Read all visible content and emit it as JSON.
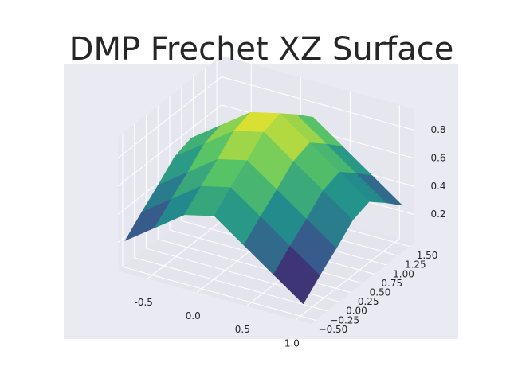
{
  "chart_data": {
    "type": "surface",
    "title": "DMP Frechet XZ Surface",
    "colormap": "viridis",
    "x": [
      -0.75,
      -0.45,
      -0.15,
      0.15,
      0.45,
      0.75,
      1.05
    ],
    "y": [
      -0.55,
      -0.2,
      0.15,
      0.5,
      0.85,
      1.2,
      1.55
    ],
    "z": [
      [
        0.21,
        0.36,
        0.51,
        0.56,
        0.41,
        0.26,
        0.11
      ],
      [
        0.32,
        0.47,
        0.62,
        0.67,
        0.52,
        0.37,
        0.22
      ],
      [
        0.42,
        0.57,
        0.72,
        0.77,
        0.62,
        0.47,
        0.32
      ],
      [
        0.53,
        0.68,
        0.83,
        0.88,
        0.73,
        0.58,
        0.43
      ],
      [
        0.57,
        0.72,
        0.87,
        0.92,
        0.77,
        0.62,
        0.47
      ],
      [
        0.47,
        0.62,
        0.77,
        0.82,
        0.67,
        0.52,
        0.37
      ],
      [
        0.36,
        0.51,
        0.66,
        0.71,
        0.56,
        0.41,
        0.26
      ]
    ],
    "xlim": [
      -0.8,
      1.15
    ],
    "ylim": [
      -0.6,
      1.6
    ],
    "zlim": [
      0,
      0.95
    ],
    "xticks": [
      -0.5,
      {
        "value": 0,
        "label": "0.0"
      },
      0.5,
      {
        "value": 1,
        "label": "1.0"
      }
    ],
    "yticks": [
      {
        "value": -0.5,
        "label": "−0.50"
      },
      {
        "value": -0.25,
        "label": "−0.25"
      },
      {
        "value": 0,
        "label": "0.00"
      },
      {
        "value": 0.25,
        "label": "0.25"
      },
      {
        "value": 0.5,
        "label": "0.50"
      },
      {
        "value": 0.75,
        "label": "0.75"
      },
      {
        "value": 1,
        "label": "1.00"
      },
      {
        "value": 1.25,
        "label": "1.25"
      },
      {
        "value": 1.5,
        "label": "1.50"
      }
    ],
    "zticks": [
      0.2,
      0.4,
      0.6,
      0.8
    ],
    "grid": true
  }
}
